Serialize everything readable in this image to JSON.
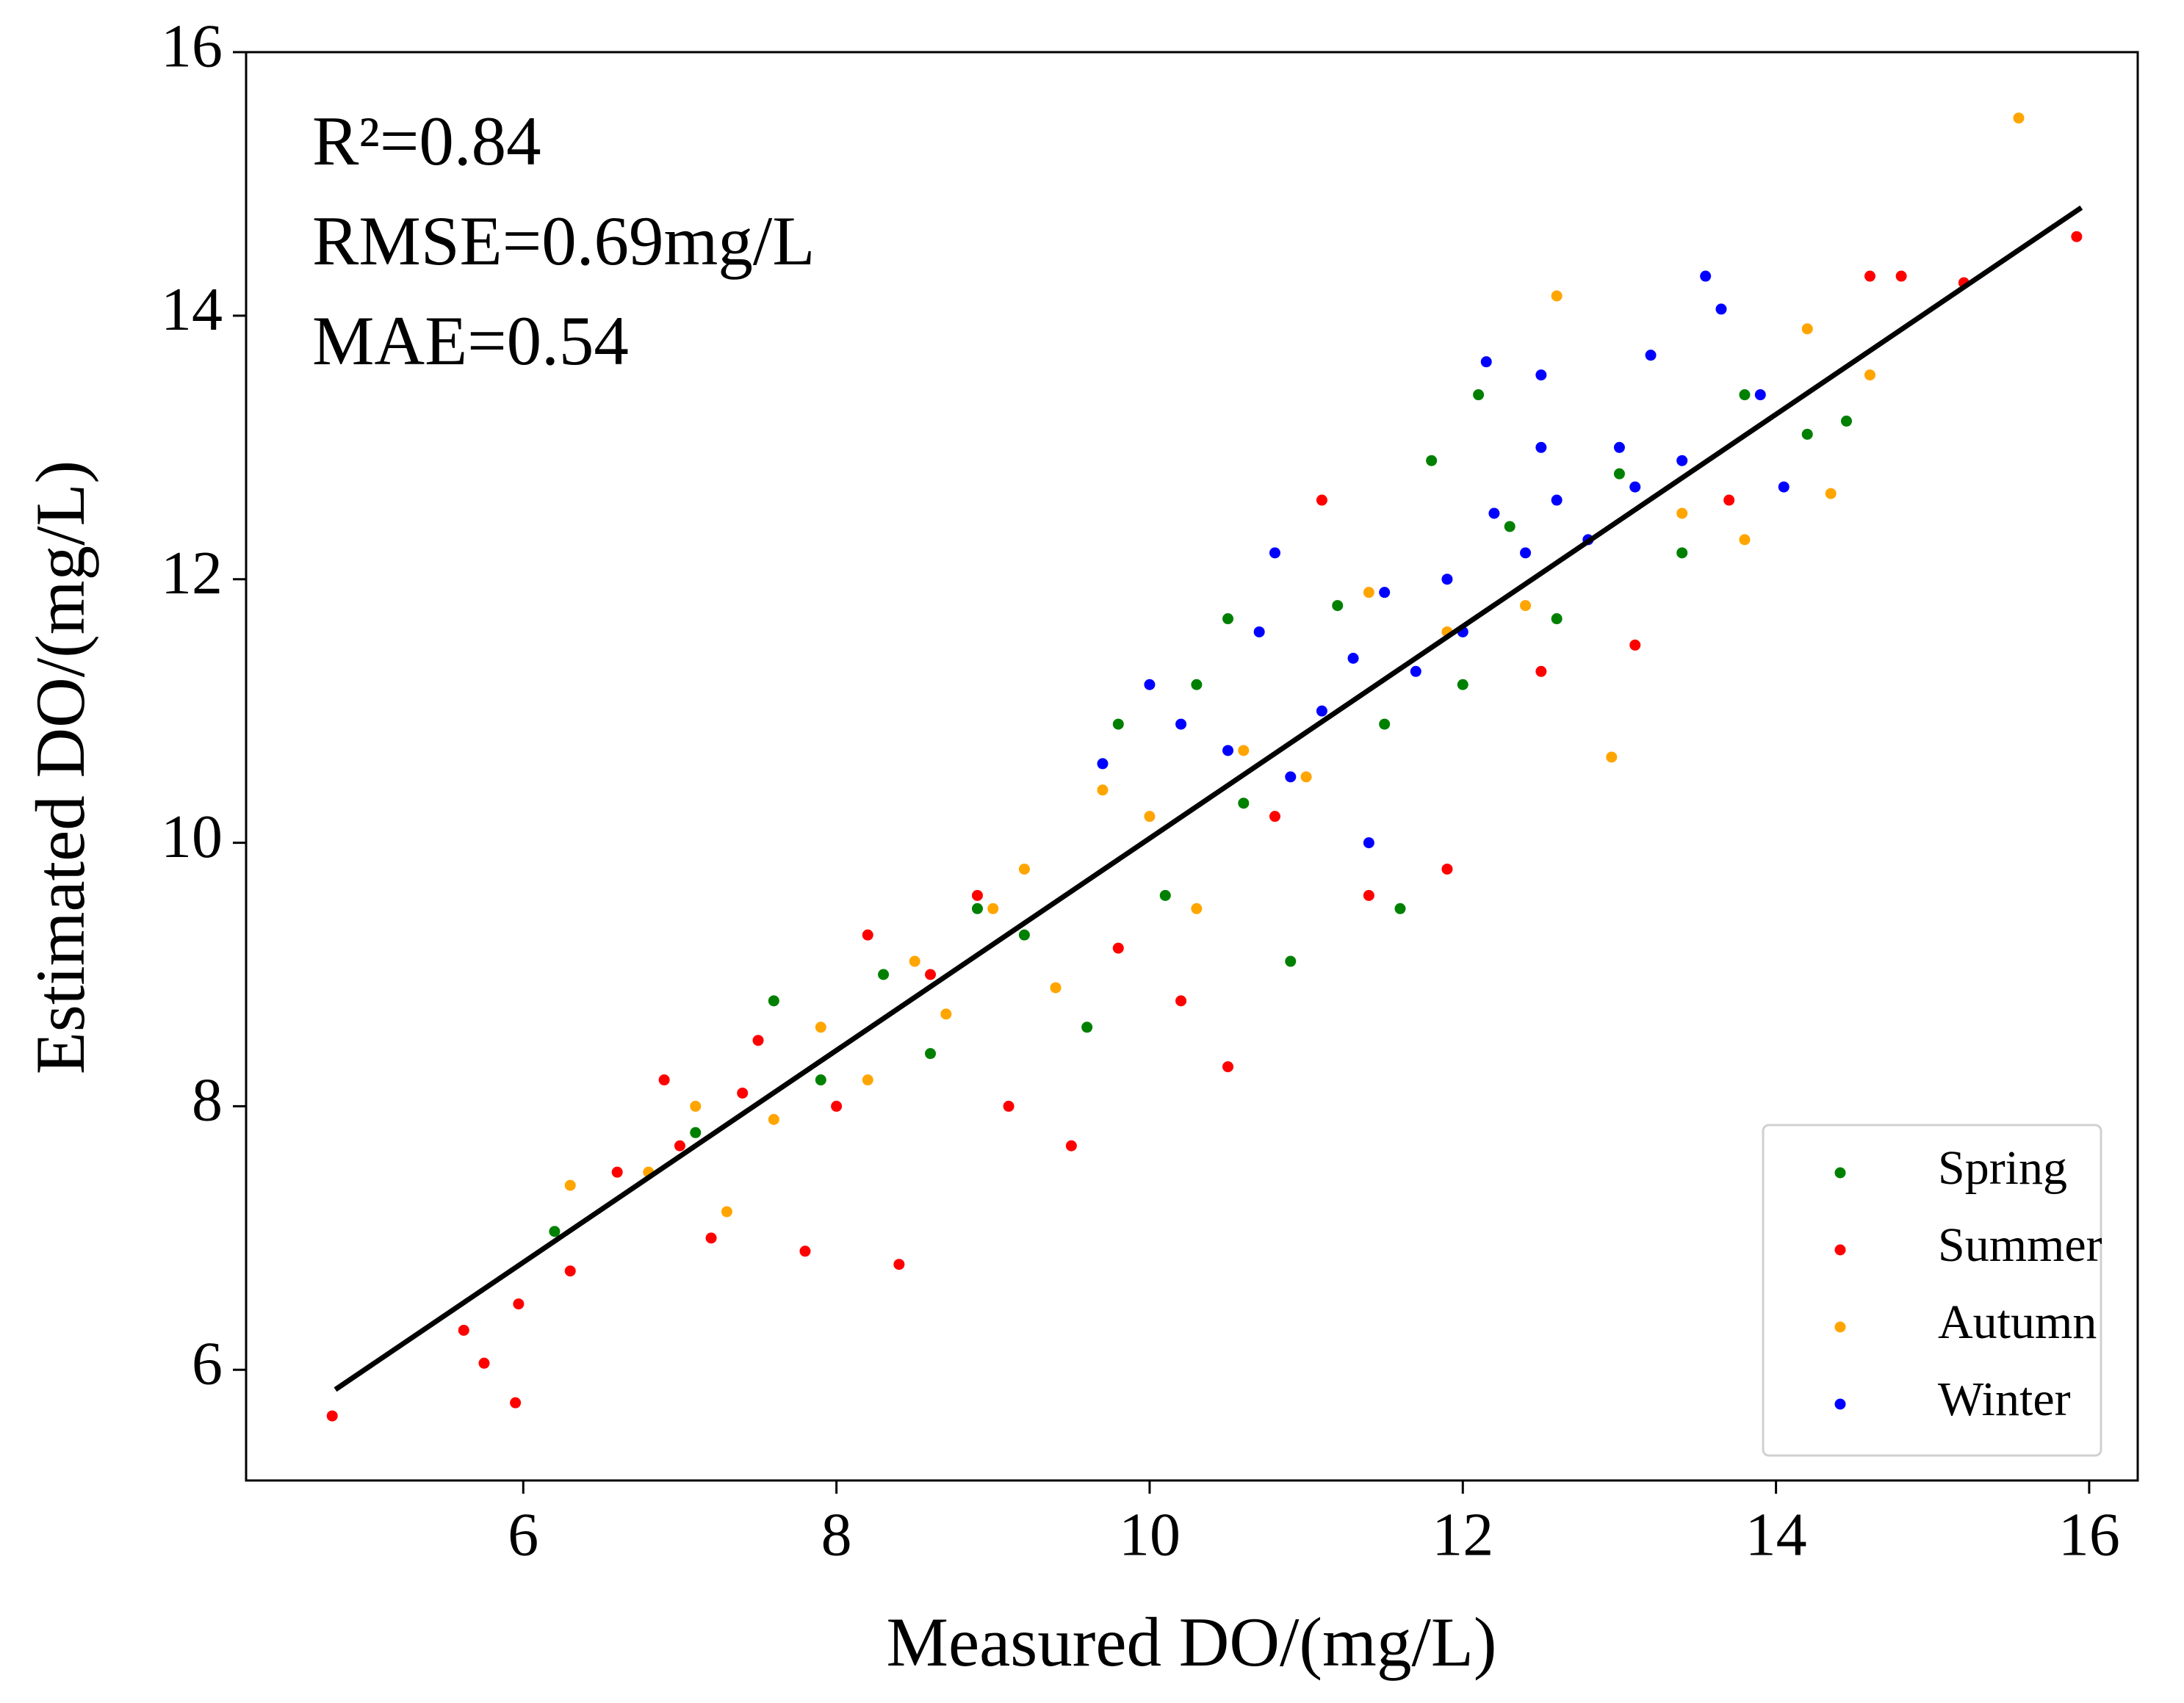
{
  "chart_data": {
    "type": "scatter",
    "xlabel": "Measured DO/(mg/L)",
    "ylabel": "Estimated DO/(mg/L)",
    "annotations": [
      "R²=0.84",
      "RMSE=0.69mg/L",
      "MAE=0.54"
    ],
    "xlim": [
      4.23,
      16.31
    ],
    "ylim": [
      5.16,
      16
    ],
    "xticks": [
      6,
      8,
      10,
      12,
      14,
      16
    ],
    "yticks": [
      6,
      8,
      10,
      12,
      14,
      16
    ],
    "grid": false,
    "legend": "lower right",
    "series": [
      {
        "name": "Spring",
        "color": "#008000",
        "x": [
          6.2,
          7.1,
          7.6,
          7.9,
          8.3,
          8.6,
          8.9,
          9.2,
          9.6,
          9.8,
          10.1,
          10.3,
          10.6,
          10.9,
          11.2,
          11.5,
          11.6,
          11.8,
          12.0,
          12.3,
          12.6,
          13.0,
          13.4,
          13.8,
          14.2,
          14.45,
          12.1,
          10.5
        ],
        "y": [
          7.05,
          7.8,
          8.8,
          8.2,
          9.0,
          8.4,
          9.5,
          9.3,
          8.6,
          10.9,
          9.6,
          11.2,
          10.3,
          9.1,
          11.8,
          10.9,
          9.5,
          12.9,
          11.2,
          12.4,
          11.7,
          12.8,
          12.2,
          13.4,
          13.1,
          13.2,
          13.4,
          11.7
        ]
      },
      {
        "name": "Summer",
        "color": "#ff0000",
        "x": [
          4.78,
          5.62,
          5.75,
          5.95,
          5.97,
          6.3,
          6.6,
          6.9,
          7.2,
          7.5,
          7.8,
          8.0,
          8.2,
          8.4,
          8.6,
          8.9,
          9.1,
          9.5,
          9.8,
          10.2,
          10.5,
          10.8,
          11.1,
          11.4,
          11.9,
          12.5,
          13.1,
          13.7,
          14.6,
          14.8,
          15.2,
          15.92,
          7.0,
          7.4
        ],
        "y": [
          5.65,
          6.3,
          6.05,
          5.75,
          6.5,
          6.75,
          7.5,
          8.2,
          7.0,
          8.5,
          6.9,
          8.0,
          9.3,
          6.8,
          9.0,
          9.6,
          8.0,
          7.7,
          9.2,
          8.8,
          8.3,
          10.2,
          12.6,
          9.6,
          9.8,
          11.3,
          11.5,
          12.6,
          14.3,
          14.3,
          14.25,
          14.6,
          7.7,
          8.1
        ]
      },
      {
        "name": "Autumn",
        "color": "#ffa500",
        "x": [
          6.3,
          6.8,
          7.1,
          7.3,
          7.6,
          7.9,
          8.2,
          8.5,
          8.7,
          9.0,
          9.2,
          9.4,
          9.7,
          10.0,
          10.3,
          10.6,
          11.0,
          11.4,
          11.9,
          12.4,
          12.6,
          12.95,
          13.4,
          14.2,
          14.35,
          14.6,
          15.55,
          13.8
        ],
        "y": [
          7.4,
          7.5,
          8.0,
          7.2,
          7.9,
          8.6,
          8.2,
          9.1,
          8.7,
          9.5,
          9.8,
          8.9,
          10.4,
          10.2,
          9.5,
          10.7,
          10.5,
          11.9,
          11.6,
          11.8,
          14.15,
          10.65,
          12.5,
          13.9,
          12.65,
          13.55,
          15.5,
          12.3
        ]
      },
      {
        "name": "Winter",
        "color": "#0000ff",
        "x": [
          9.7,
          10.0,
          10.2,
          10.5,
          10.7,
          10.8,
          10.9,
          11.1,
          11.3,
          11.4,
          11.5,
          11.7,
          11.9,
          12.0,
          12.2,
          12.4,
          12.5,
          12.6,
          12.8,
          13.0,
          13.1,
          13.2,
          13.4,
          13.55,
          13.65,
          13.9,
          14.05,
          12.15,
          12.5
        ],
        "y": [
          10.6,
          11.2,
          10.9,
          10.7,
          11.6,
          12.2,
          10.5,
          11.0,
          11.4,
          10.0,
          11.9,
          11.3,
          12.0,
          11.6,
          12.5,
          12.2,
          13.0,
          12.6,
          12.3,
          13.0,
          12.7,
          13.7,
          12.9,
          14.3,
          14.05,
          13.4,
          12.7,
          13.65,
          13.55
        ]
      }
    ],
    "fit_line": {
      "color": "#000000",
      "x": [
        4.8,
        15.95
      ],
      "y": [
        5.85,
        14.82
      ]
    }
  }
}
